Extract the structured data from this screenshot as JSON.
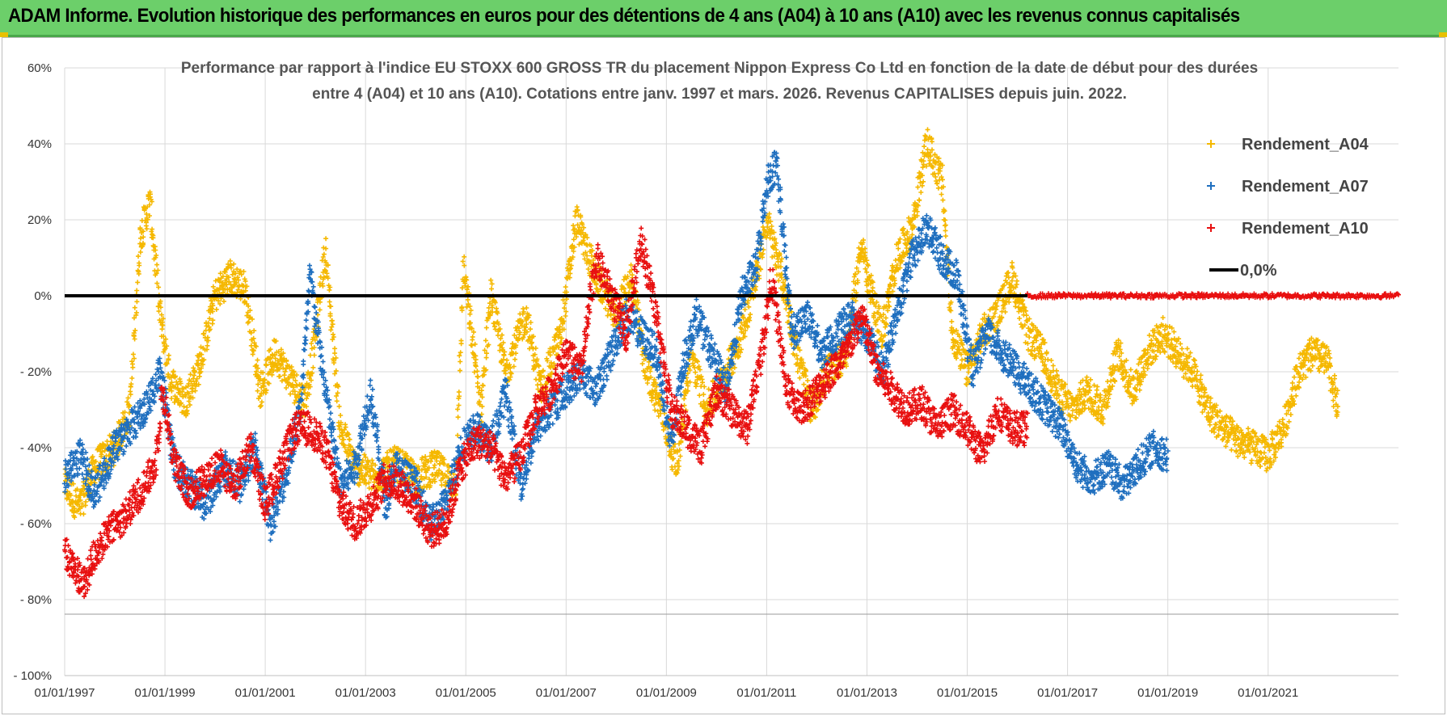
{
  "header": {
    "title": "ADAM Informe. Evolution historique des performances en euros pour des détentions de 4 ans (A04) à 10 ans (A10) avec les revenus connus capitalisés"
  },
  "colors": {
    "banner": "#6ccf6a",
    "A04": "#f5b800",
    "A07": "#1f6fbf",
    "A10": "#e81010",
    "zero": "#000000"
  },
  "chart_data": {
    "type": "scatter",
    "title_line1": "Performance par rapport à l'indice EU STOXX 600 GROSS TR  du placement Nippon Express Co Ltd en fonction de la date de début pour des durées",
    "title_line2": "entre 4 (A04) et 10 ans (A10). Cotations entre janv. 1997 et mars. 2026. Revenus CAPITALISES depuis juin. 2022.",
    "xlim": [
      1997.0,
      2023.6
    ],
    "ylim": [
      -100,
      60
    ],
    "x_ticks": [
      1997,
      1999,
      2001,
      2003,
      2005,
      2007,
      2009,
      2011,
      2013,
      2015,
      2017,
      2019,
      2021
    ],
    "x_tick_labels": [
      "01/01/1997",
      "01/01/1999",
      "01/01/2001",
      "01/01/2003",
      "01/01/2005",
      "01/01/2007",
      "01/01/2009",
      "01/01/2011",
      "01/01/2013",
      "01/01/2015",
      "01/01/2017",
      "01/01/2019",
      "01/01/2021"
    ],
    "y_ticks": [
      60,
      40,
      20,
      0,
      -20,
      -40,
      -60,
      -80,
      -100
    ],
    "y_tick_labels": [
      "60%",
      "40%",
      "20%",
      "0%",
      "- 20%",
      "- 40%",
      "- 60%",
      "- 80%",
      "- 100%"
    ],
    "legend": [
      {
        "key": "A04",
        "label": "Rendement_A04",
        "marker": "plus"
      },
      {
        "key": "A07",
        "label": "Rendement_A07",
        "marker": "plus"
      },
      {
        "key": "A10",
        "label": "Rendement_A10",
        "marker": "plus"
      },
      {
        "key": "zero",
        "label": "0,0%",
        "marker": "line"
      }
    ],
    "series": [
      {
        "name": "Rendement_A04",
        "key": "A04",
        "x": [
          1997.0,
          1997.3,
          1997.6,
          1998.0,
          1998.3,
          1998.5,
          1998.7,
          1998.9,
          1999.1,
          1999.4,
          1999.7,
          2000.0,
          2000.3,
          2000.6,
          2000.9,
          2001.2,
          2001.5,
          2001.8,
          2002.0,
          2002.2,
          2002.5,
          2002.8,
          2003.2,
          2003.6,
          2004.0,
          2004.4,
          2004.8,
          2004.95,
          2005.3,
          2005.5,
          2005.8,
          2006.2,
          2006.5,
          2006.9,
          2007.2,
          2007.6,
          2008.0,
          2008.3,
          2008.6,
          2008.9,
          2009.2,
          2009.5,
          2009.8,
          2010.2,
          2010.5,
          2010.8,
          2011.0,
          2011.3,
          2011.6,
          2011.9,
          2012.2,
          2012.6,
          2012.9,
          2013.0,
          2013.3,
          2013.6,
          2013.9,
          2014.2,
          2014.5,
          2014.7,
          2015.0,
          2015.3,
          2015.6,
          2015.9,
          2016.2,
          2016.5,
          2016.8,
          2017.1,
          2017.4,
          2017.7,
          2018.0,
          2018.3,
          2018.6,
          2018.9,
          2019.2,
          2019.5,
          2019.8,
          2020.1,
          2020.4,
          2020.7,
          2021.0,
          2021.3,
          2021.6,
          2021.9,
          2022.2,
          2022.4
        ],
        "y": [
          -50,
          -56,
          -45,
          -40,
          -30,
          15,
          25,
          -5,
          -22,
          -28,
          -18,
          0,
          5,
          2,
          -25,
          -15,
          -22,
          -28,
          -10,
          12,
          -35,
          -45,
          -48,
          -44,
          -48,
          -45,
          -50,
          8,
          -30,
          0,
          -20,
          -5,
          -25,
          -10,
          20,
          5,
          -5,
          5,
          -20,
          -30,
          -45,
          -15,
          -30,
          -20,
          -10,
          5,
          20,
          5,
          -15,
          -30,
          -20,
          -15,
          15,
          5,
          -10,
          10,
          18,
          40,
          30,
          -10,
          -20,
          -10,
          -5,
          5,
          -10,
          -15,
          -25,
          -30,
          -25,
          -30,
          -15,
          -25,
          -15,
          -10,
          -15,
          -20,
          -30,
          -35,
          -38,
          -40,
          -42,
          -35,
          -20,
          -15,
          -18,
          -30
        ]
      },
      {
        "name": "Rendement_A07",
        "key": "A07",
        "x": [
          1997.0,
          1997.3,
          1997.6,
          1998.0,
          1998.3,
          1998.6,
          1998.9,
          1999.2,
          1999.5,
          1999.8,
          2000.2,
          2000.5,
          2000.8,
          2001.1,
          2001.4,
          2001.7,
          2001.9,
          2002.2,
          2002.5,
          2002.8,
          2003.1,
          2003.4,
          2003.6,
          2004.0,
          2004.3,
          2004.6,
          2004.9,
          2005.2,
          2005.5,
          2005.8,
          2006.1,
          2006.4,
          2006.7,
          2007.0,
          2007.3,
          2007.6,
          2007.9,
          2008.2,
          2008.5,
          2008.8,
          2009.1,
          2009.3,
          2009.6,
          2009.9,
          2010.2,
          2010.5,
          2010.8,
          2011.0,
          2011.2,
          2011.5,
          2011.8,
          2012.1,
          2012.4,
          2012.7,
          2013.0,
          2013.3,
          2013.6,
          2013.9,
          2014.2,
          2014.5,
          2014.8,
          2015.1,
          2015.4,
          2015.7,
          2016.0,
          2016.3,
          2016.6,
          2016.9,
          2017.2,
          2017.5,
          2017.8,
          2018.1,
          2018.4,
          2018.7,
          2019.0
        ],
        "y": [
          -48,
          -42,
          -52,
          -40,
          -35,
          -30,
          -20,
          -45,
          -50,
          -55,
          -45,
          -50,
          -40,
          -60,
          -48,
          -30,
          5,
          -25,
          -50,
          -45,
          -25,
          -55,
          -45,
          -50,
          -60,
          -55,
          -40,
          -35,
          -40,
          -25,
          -50,
          -35,
          -30,
          -25,
          -20,
          -25,
          -15,
          -5,
          -10,
          -15,
          -40,
          -20,
          -5,
          -15,
          -25,
          0,
          8,
          30,
          35,
          -10,
          -5,
          -15,
          -10,
          -5,
          -10,
          -20,
          -5,
          10,
          18,
          10,
          5,
          -20,
          -10,
          -15,
          -20,
          -25,
          -30,
          -35,
          -45,
          -48,
          -45,
          -50,
          -45,
          -40,
          -42
        ]
      },
      {
        "name": "Rendement_A10",
        "key": "A10",
        "x": [
          1997.0,
          1997.2,
          1997.4,
          1997.6,
          1997.9,
          1998.2,
          1998.5,
          1998.8,
          1998.95,
          1999.2,
          1999.5,
          1999.8,
          2000.1,
          2000.4,
          2000.7,
          2001.0,
          2001.3,
          2001.6,
          2001.9,
          2002.2,
          2002.5,
          2002.8,
          2003.1,
          2003.4,
          2003.7,
          2004.0,
          2004.3,
          2004.6,
          2004.9,
          2005.2,
          2005.5,
          2005.8,
          2006.1,
          2006.4,
          2006.7,
          2007.0,
          2007.3,
          2007.6,
          2007.9,
          2008.2,
          2008.5,
          2008.8,
          2009.1,
          2009.4,
          2009.7,
          2010.0,
          2010.3,
          2010.6,
          2010.9,
          2011.1,
          2011.4,
          2011.7,
          2012.0,
          2012.3,
          2012.6,
          2012.9,
          2013.2,
          2013.5,
          2013.8,
          2014.1,
          2014.4,
          2014.7,
          2015.0,
          2015.3,
          2015.6,
          2015.9,
          2016.2
        ],
        "y": [
          -68,
          -72,
          -76,
          -68,
          -62,
          -58,
          -52,
          -45,
          -25,
          -45,
          -52,
          -48,
          -45,
          -50,
          -40,
          -55,
          -45,
          -35,
          -35,
          -40,
          -55,
          -60,
          -55,
          -48,
          -50,
          -55,
          -62,
          -60,
          -45,
          -38,
          -40,
          -48,
          -42,
          -30,
          -25,
          -15,
          -20,
          10,
          0,
          -10,
          15,
          -5,
          -30,
          -35,
          -40,
          -25,
          -30,
          -35,
          -15,
          5,
          -25,
          -30,
          -25,
          -20,
          -15,
          -5,
          -20,
          -25,
          -30,
          -28,
          -35,
          -30,
          -35,
          -42,
          -30,
          -35,
          -35
        ]
      }
    ],
    "zero_line": {
      "label": "0,0%",
      "y": 0,
      "x_from": 1997.0,
      "x_to": 2023.6
    }
  }
}
